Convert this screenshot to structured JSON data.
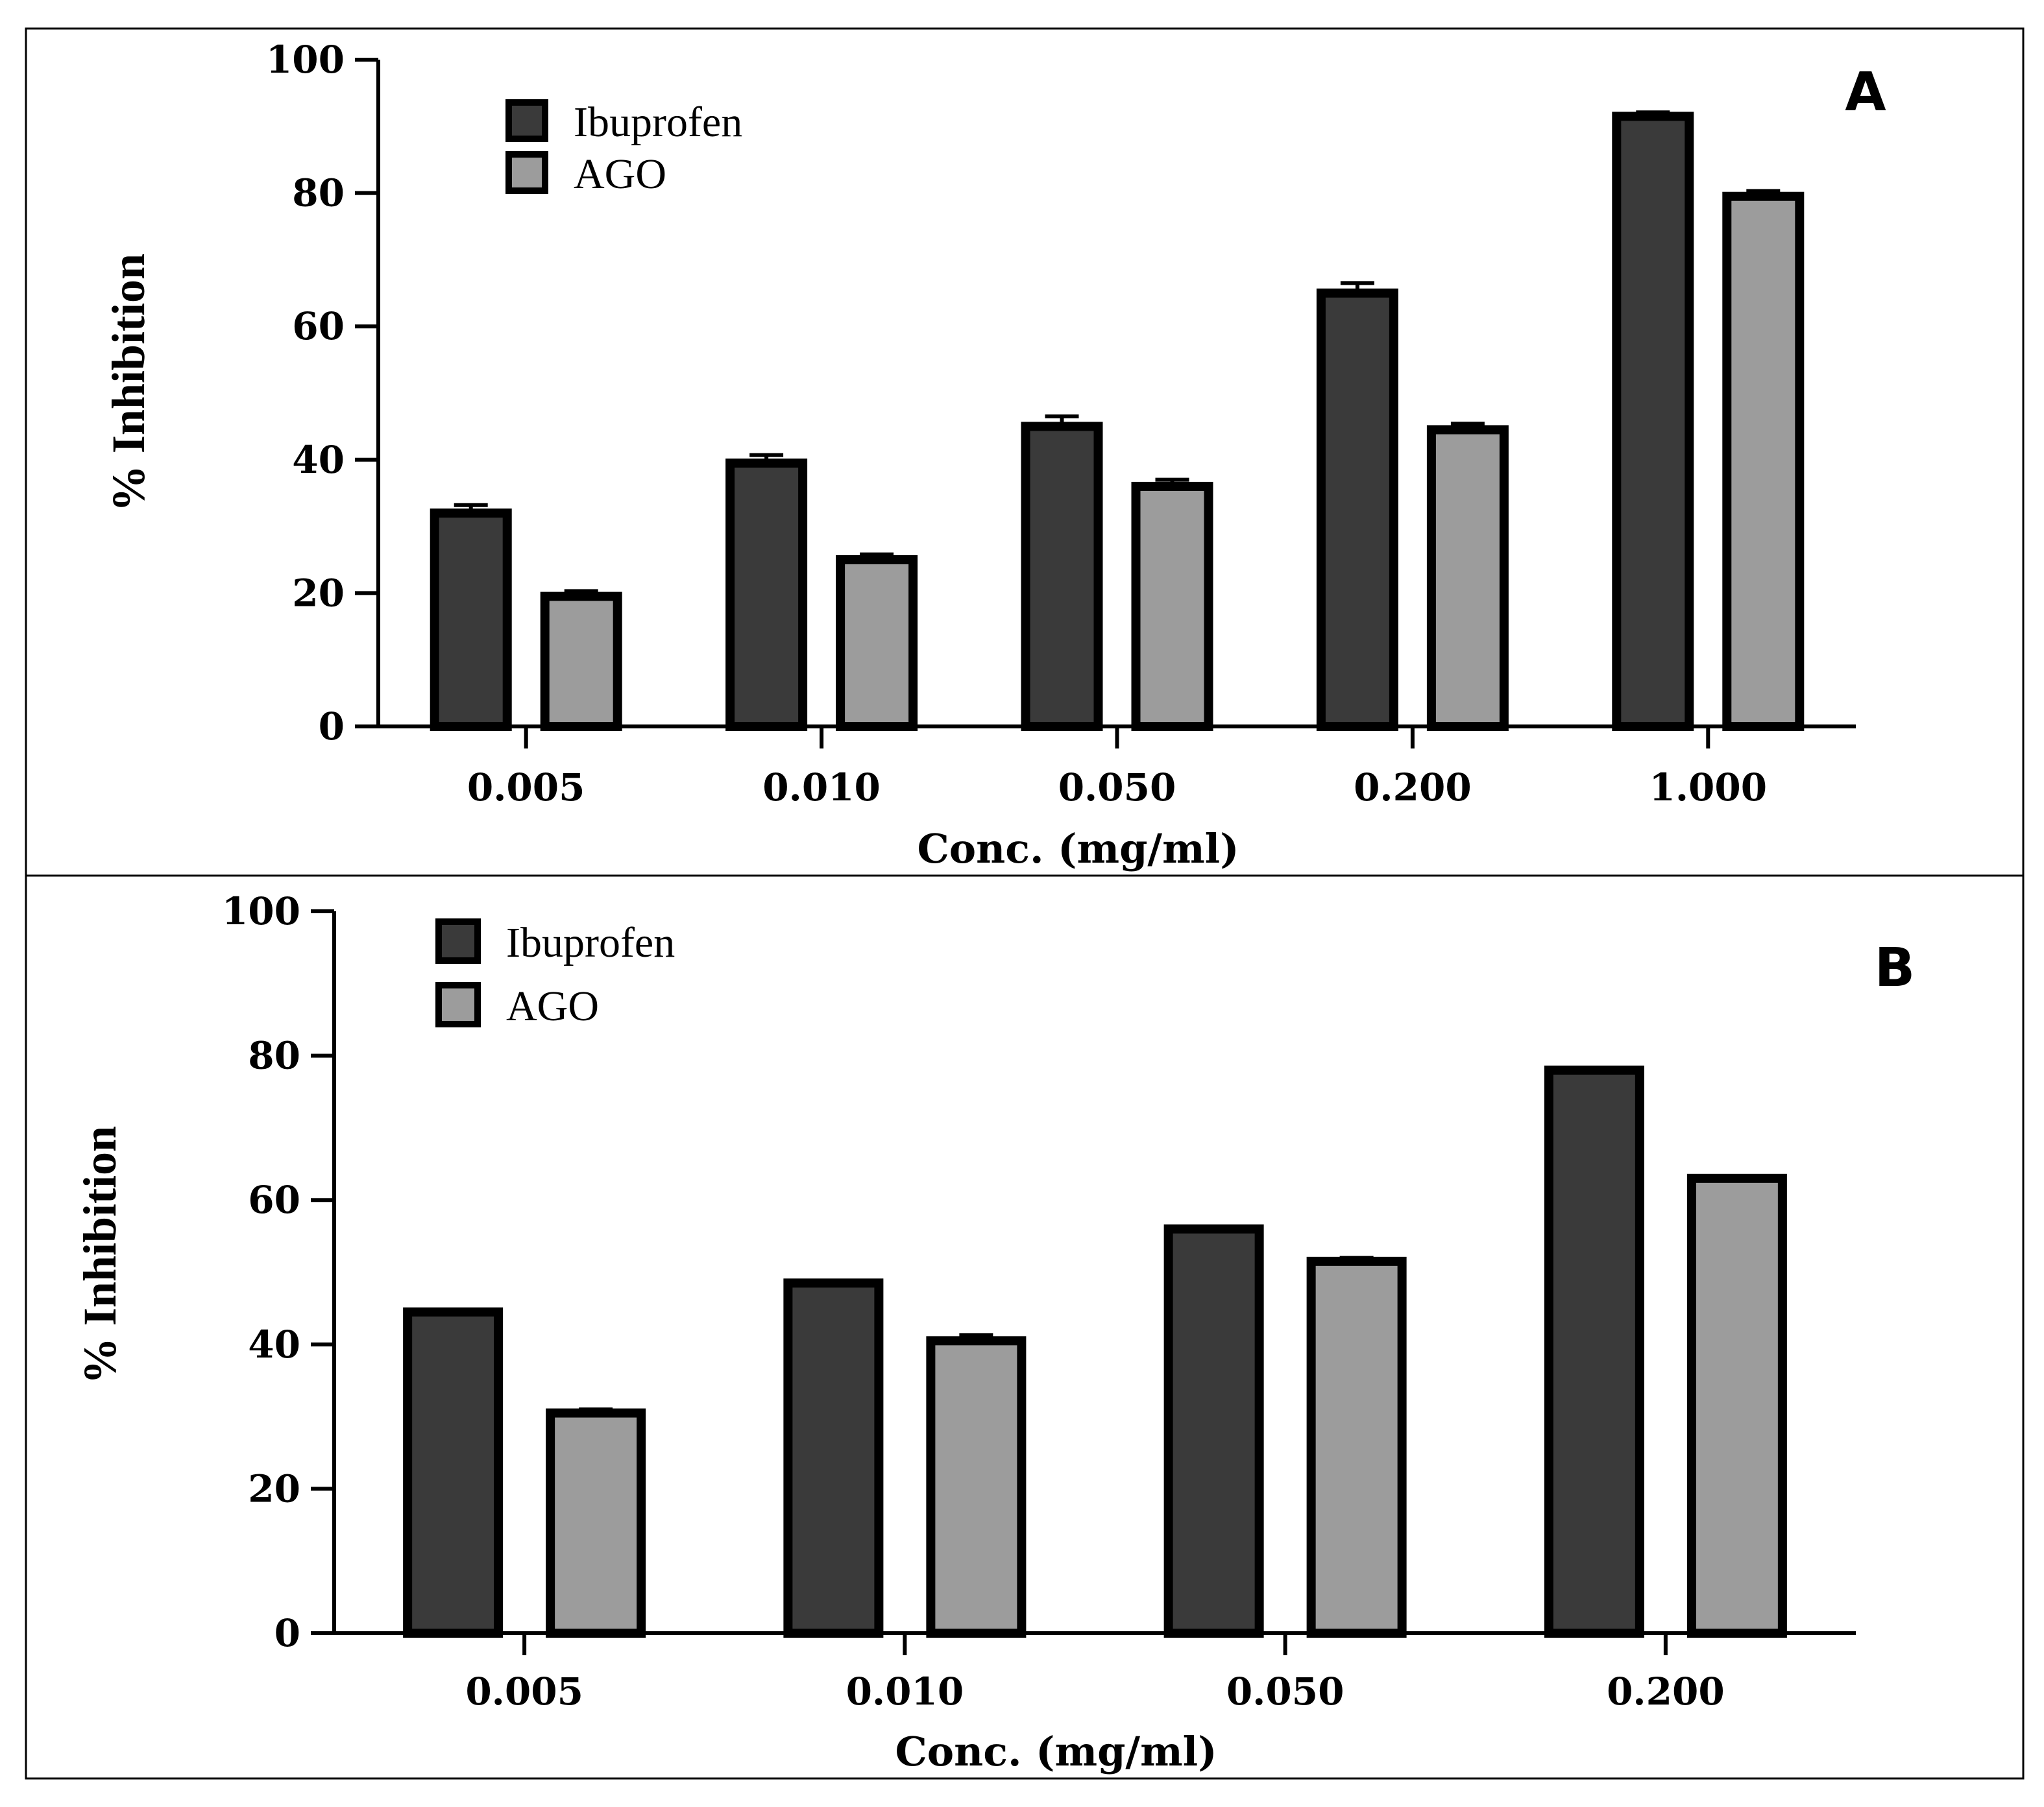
{
  "colors": {
    "ibuprofen": "#3a3a3a",
    "ago": "#9c9c9c",
    "outline": "#000000"
  },
  "chart_data": [
    {
      "panel": "A",
      "type": "bar",
      "title": "",
      "xlabel": "Conc. (mg/ml)",
      "ylabel": "% Inhibition",
      "ylim": [
        0,
        100
      ],
      "yticks": [
        "0",
        "20",
        "40",
        "60",
        "80",
        "100"
      ],
      "categories": [
        "0.005",
        "0.010",
        "0.050",
        "0.200",
        "1.000"
      ],
      "legend_position": "top-left",
      "grid": false,
      "series": [
        {
          "name": "Ibuprofen",
          "color": "#3a3a3a",
          "values": [
            32,
            39.5,
            45,
            65,
            91.5
          ],
          "errors": [
            1.2,
            1.2,
            1.5,
            1.5,
            0.6
          ]
        },
        {
          "name": "AGO",
          "color": "#9c9c9c",
          "values": [
            19.5,
            25,
            36,
            44.5,
            79.5
          ],
          "errors": [
            0.8,
            0.8,
            1.0,
            0.9,
            0.8
          ]
        }
      ]
    },
    {
      "panel": "B",
      "type": "bar",
      "title": "",
      "xlabel": "Conc. (mg/ml)",
      "ylabel": "% Inhibition",
      "ylim": [
        0,
        100
      ],
      "yticks": [
        "0",
        "20",
        "40",
        "60",
        "80",
        "100"
      ],
      "categories": [
        "0.005",
        "0.010",
        "0.050",
        "0.200"
      ],
      "legend_position": "top-left",
      "grid": false,
      "series": [
        {
          "name": "Ibuprofen",
          "color": "#3a3a3a",
          "values": [
            44.5,
            48.5,
            56,
            78
          ],
          "errors": [
            0.3,
            0.3,
            0.3,
            0.3
          ]
        },
        {
          "name": "AGO",
          "color": "#9c9c9c",
          "values": [
            30.5,
            40.5,
            51.5,
            63
          ],
          "errors": [
            0.5,
            0.8,
            0.5,
            0.3
          ]
        }
      ]
    }
  ]
}
